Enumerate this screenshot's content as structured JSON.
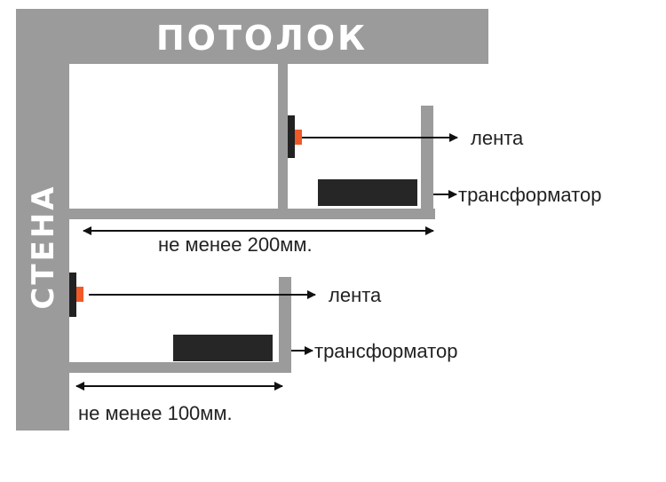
{
  "ceiling_label": "ПОТОЛОК",
  "wall_label": "СТЕНА",
  "upper": {
    "tape_label": "лента",
    "transformer_label": "трансформатор",
    "dimension_label": "не менее 200мм."
  },
  "lower": {
    "tape_label": "лента",
    "transformer_label": "трансформатор",
    "dimension_label": "не менее 100мм."
  },
  "colors": {
    "structure": "#9b9b9b",
    "transformer": "#262626",
    "led_accent": "#f05a28",
    "arrow": "#111111"
  }
}
